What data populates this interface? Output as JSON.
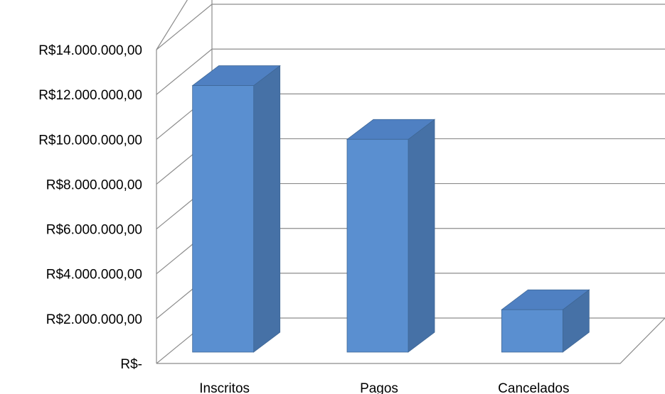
{
  "chart_data": {
    "type": "bar",
    "title": "",
    "xlabel": "",
    "ylabel": "",
    "categories": [
      "Inscritos",
      "Pagos",
      "Cancelados"
    ],
    "values": [
      12400000,
      10000000,
      2400000
    ],
    "ylim": [
      0,
      14000000
    ],
    "yticks": [
      0,
      2000000,
      4000000,
      6000000,
      8000000,
      10000000,
      12000000,
      14000000
    ],
    "ytick_labels": [
      "R$-",
      "R$2.000.000,00",
      "R$4.000.000,00",
      "R$6.000.000,00",
      "R$8.000.000,00",
      "R$10.000.000,00",
      "R$12.000.000,00",
      "R$14.000.000,00"
    ],
    "style": "3d-column",
    "grid": true,
    "legend": "none",
    "colors": {
      "bar_front": "#5a8fd0",
      "bar_top": "#4f80c2",
      "bar_side": "#4671a6",
      "bar_edge": "#3f6796",
      "grid": "#8c8c8c"
    }
  }
}
